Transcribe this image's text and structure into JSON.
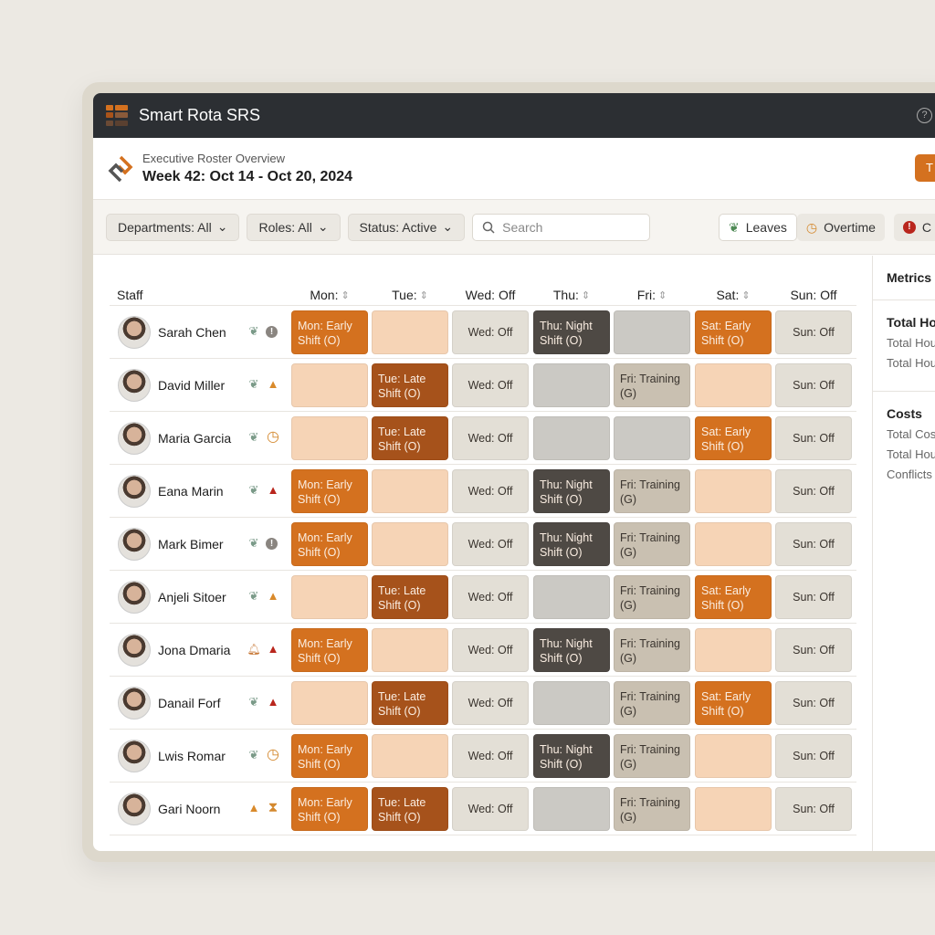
{
  "app": {
    "title": "Smart Rota SRS",
    "help": "?"
  },
  "header": {
    "subtitle": "Executive Roster Overview",
    "week": "Week 42: Oct 14 - Oct 20, 2024",
    "action_label": "T"
  },
  "filters": {
    "departments": "Departments: All",
    "roles": "Roles: All",
    "status": "Status: Active",
    "search_placeholder": "Search"
  },
  "legend": {
    "leaves": "Leaves",
    "overtime": "Overtime",
    "conflicts": "C"
  },
  "columns": {
    "staff": "Staff",
    "days": [
      "Mon:",
      "Tue:",
      "Wed: Off",
      "Thu:",
      "Fri:",
      "Sat:",
      "Sun: Off"
    ],
    "sortable": [
      true,
      true,
      false,
      true,
      true,
      true,
      false
    ]
  },
  "sidebar": {
    "title": "Metrics",
    "hours_title": "Total Hou",
    "hours_items": [
      "Total Hou",
      "Total Hou"
    ],
    "costs_title": "Costs",
    "costs_items": [
      "Total Cos",
      "Total Hou",
      "Conflicts"
    ]
  },
  "colors": {
    "o": "#d4711f",
    "do": "#a6521b",
    "p": "#f6d4b6",
    "off": "#e3dfd6",
    "n": "#4e4944",
    "g": "#cbc9c4",
    "t": "#c9c0b1"
  },
  "cell_labels": {
    "Mon:o": "Mon: Early Shift (O)",
    "Tue:do": "Tue: Late Shift (O)",
    "Wed:off": "Wed: Off",
    "Thu:n": "Thu: Night Shift (O)",
    "Fri:t": "Fri: Training (G)",
    "Sat:o": "Sat: Early Shift (O)",
    "Sun:off": "Sun: Off"
  },
  "staff": [
    {
      "name": "Sarah Chen",
      "icons": [
        "leaf",
        "info"
      ],
      "cells": [
        "o",
        "p",
        "off",
        "n",
        "g",
        "o",
        "off"
      ]
    },
    {
      "name": "David Miller",
      "icons": [
        "leaf",
        "warn"
      ],
      "cells": [
        "p",
        "do",
        "off",
        "g",
        "t",
        "p",
        "off"
      ]
    },
    {
      "name": "Maria Garcia",
      "icons": [
        "leaf",
        "clock"
      ],
      "cells": [
        "p",
        "do",
        "off",
        "g",
        "g",
        "o",
        "off"
      ]
    },
    {
      "name": "Eana Marin",
      "icons": [
        "leaf",
        "alert"
      ],
      "cells": [
        "o",
        "p",
        "off",
        "n",
        "t",
        "p",
        "off"
      ]
    },
    {
      "name": "Mark Bimer",
      "icons": [
        "leaf",
        "info"
      ],
      "cells": [
        "o",
        "p",
        "off",
        "n",
        "t",
        "p",
        "off"
      ]
    },
    {
      "name": "Anjeli Sitoer",
      "icons": [
        "leaf",
        "warn"
      ],
      "cells": [
        "p",
        "do",
        "off",
        "g",
        "t",
        "o",
        "off"
      ]
    },
    {
      "name": "Jona Dmaria",
      "icons": [
        "bell",
        "alert"
      ],
      "cells": [
        "o",
        "p",
        "off",
        "n",
        "t",
        "p",
        "off"
      ]
    },
    {
      "name": "Danail Forf",
      "icons": [
        "leaf",
        "alert"
      ],
      "cells": [
        "p",
        "do",
        "off",
        "g",
        "t",
        "o",
        "off"
      ]
    },
    {
      "name": "Lwis Romar",
      "icons": [
        "leaf",
        "clock"
      ],
      "cells": [
        "o",
        "p",
        "off",
        "n",
        "t",
        "p",
        "off"
      ]
    },
    {
      "name": "Gari Noorn",
      "icons": [
        "warn",
        "hourglass"
      ],
      "cells": [
        "o",
        "do",
        "off",
        "g",
        "t",
        "p",
        "off"
      ]
    }
  ]
}
